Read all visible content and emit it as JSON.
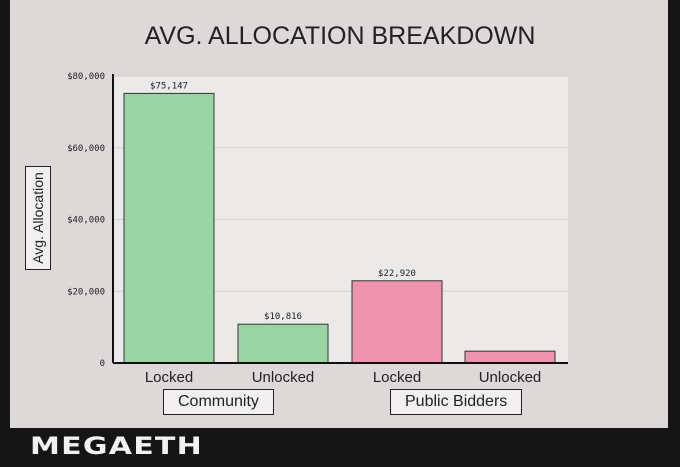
{
  "chart_data": {
    "type": "bar",
    "title": "AVG. ALLOCATION BREAKDOWN",
    "ylabel": "Avg. Allocation",
    "xlabel": "",
    "ylim": [
      0,
      80000
    ],
    "yticks": [
      "0",
      "$20,000",
      "$40,000",
      "$60,000",
      "$80,000"
    ],
    "grid": true,
    "categories": [
      "Locked",
      "Unlocked",
      "Locked",
      "Unlocked"
    ],
    "groups": [
      "Community",
      "Public Bidders"
    ],
    "values": [
      75147,
      10816,
      22920,
      3300
    ],
    "data_labels": [
      "$75,147",
      "$10,816",
      "$22,920",
      ""
    ],
    "colors": [
      "#98d4a4",
      "#98d4a4",
      "#ee93ae",
      "#ee93ae"
    ]
  },
  "brand": "MEGAETH"
}
